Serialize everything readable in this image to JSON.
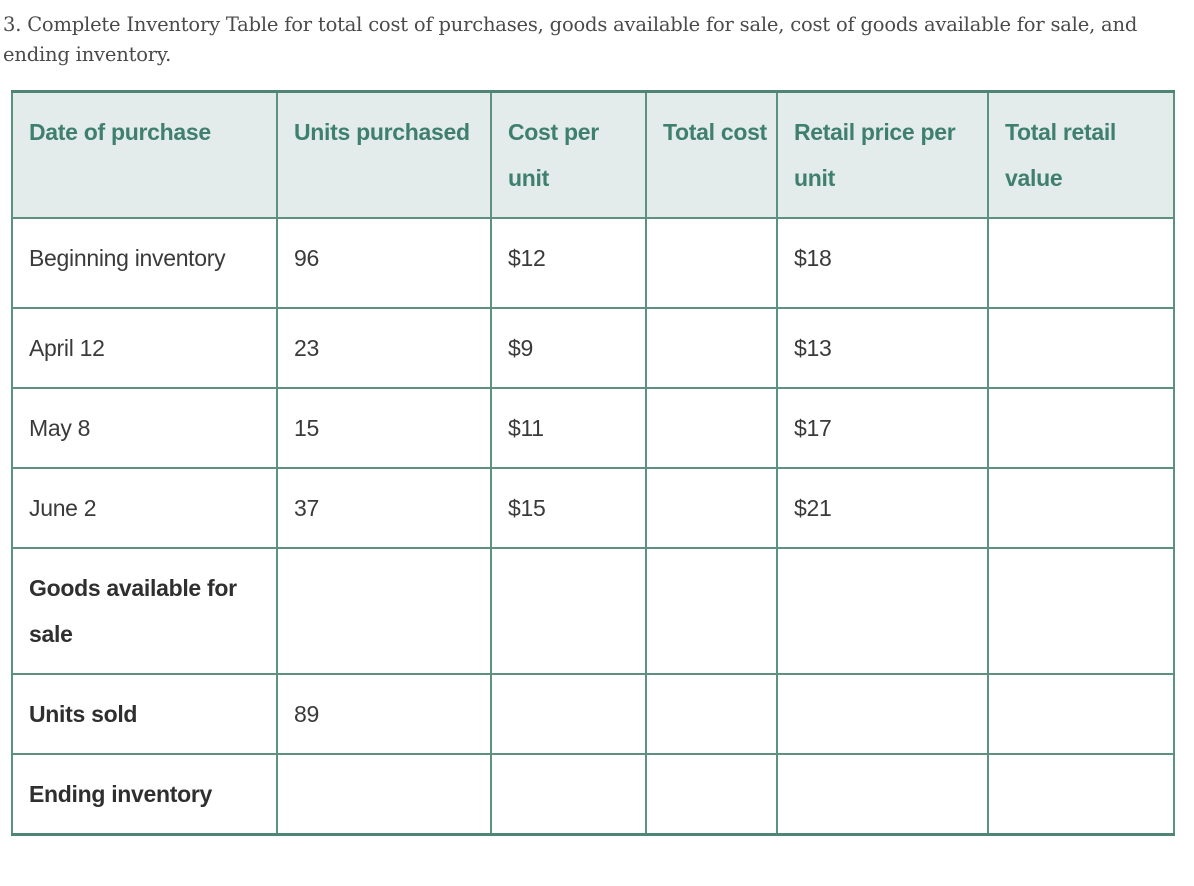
{
  "question": {
    "text": "3. Complete Inventory Table for total cost of purchases, goods available for sale, cost of goods available for sale, and ending inventory."
  },
  "table": {
    "headers": [
      "Date of purchase",
      "Units purchased",
      "Cost per unit",
      "Total cost",
      "Retail price per unit",
      "Total retail value"
    ],
    "rows": [
      {
        "label": "Beginning inventory",
        "bold": false,
        "units": "96",
        "cost_per_unit": "$12",
        "total_cost": "",
        "retail_price": "$18",
        "total_retail": ""
      },
      {
        "label": "April 12",
        "bold": false,
        "units": "23",
        "cost_per_unit": "$9",
        "total_cost": "",
        "retail_price": "$13",
        "total_retail": ""
      },
      {
        "label": "May 8",
        "bold": false,
        "units": "15",
        "cost_per_unit": "$11",
        "total_cost": "",
        "retail_price": "$17",
        "total_retail": ""
      },
      {
        "label": "June 2",
        "bold": false,
        "units": "37",
        "cost_per_unit": "$15",
        "total_cost": "",
        "retail_price": "$21",
        "total_retail": ""
      },
      {
        "label": "Goods available for sale",
        "bold": true,
        "units": "",
        "cost_per_unit": "",
        "total_cost": "",
        "retail_price": "",
        "total_retail": ""
      },
      {
        "label": "Units sold",
        "bold": true,
        "units": "89",
        "cost_per_unit": "",
        "total_cost": "",
        "retail_price": "",
        "total_retail": ""
      },
      {
        "label": "Ending inventory",
        "bold": true,
        "units": "",
        "cost_per_unit": "",
        "total_cost": "",
        "retail_price": "",
        "total_retail": ""
      }
    ]
  },
  "colors": {
    "header_bg": "#e3ecea",
    "header_text": "#3f7f6e",
    "border": "#5d917f",
    "body_text": "#3a3a3a"
  }
}
